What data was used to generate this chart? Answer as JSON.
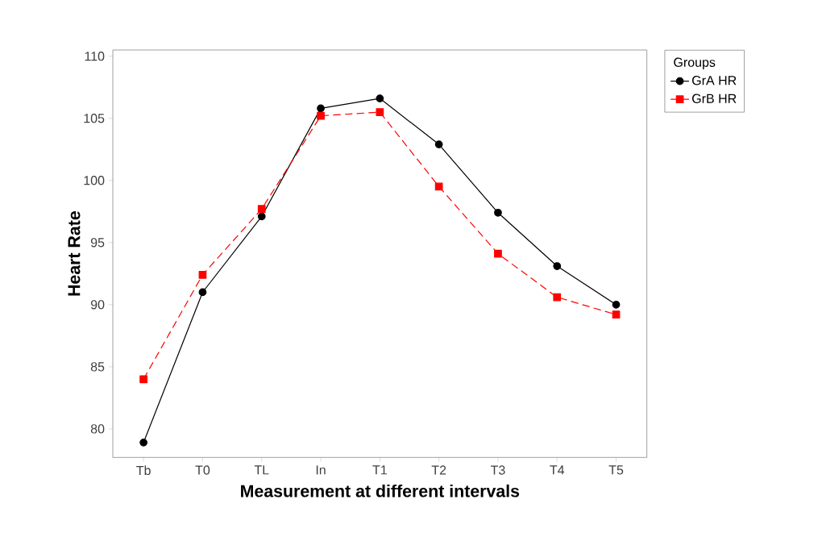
{
  "chart_data": {
    "type": "line",
    "xlabel": "Measurement at different intervals",
    "ylabel": "Heart Rate",
    "legend_title": "Groups",
    "legend": "top right",
    "categories": [
      "Tb",
      "T0",
      "TL",
      "In",
      "T1",
      "T2",
      "T3",
      "T4",
      "T5"
    ],
    "ylim": [
      77.7,
      110.5
    ],
    "yticks": [
      80,
      85,
      90,
      95,
      100,
      105,
      110
    ],
    "series": [
      {
        "name": "GrA HR",
        "color": "#000000",
        "marker": "circle",
        "line_style": "solid",
        "values": [
          78.9,
          91.0,
          97.1,
          105.8,
          106.6,
          102.9,
          97.4,
          93.1,
          90.0
        ]
      },
      {
        "name": "GrB HR",
        "color": "#ff0000",
        "marker": "square",
        "line_style": "dashed",
        "values": [
          84.0,
          92.4,
          97.7,
          105.2,
          105.5,
          99.5,
          94.1,
          90.6,
          89.2
        ]
      }
    ]
  }
}
